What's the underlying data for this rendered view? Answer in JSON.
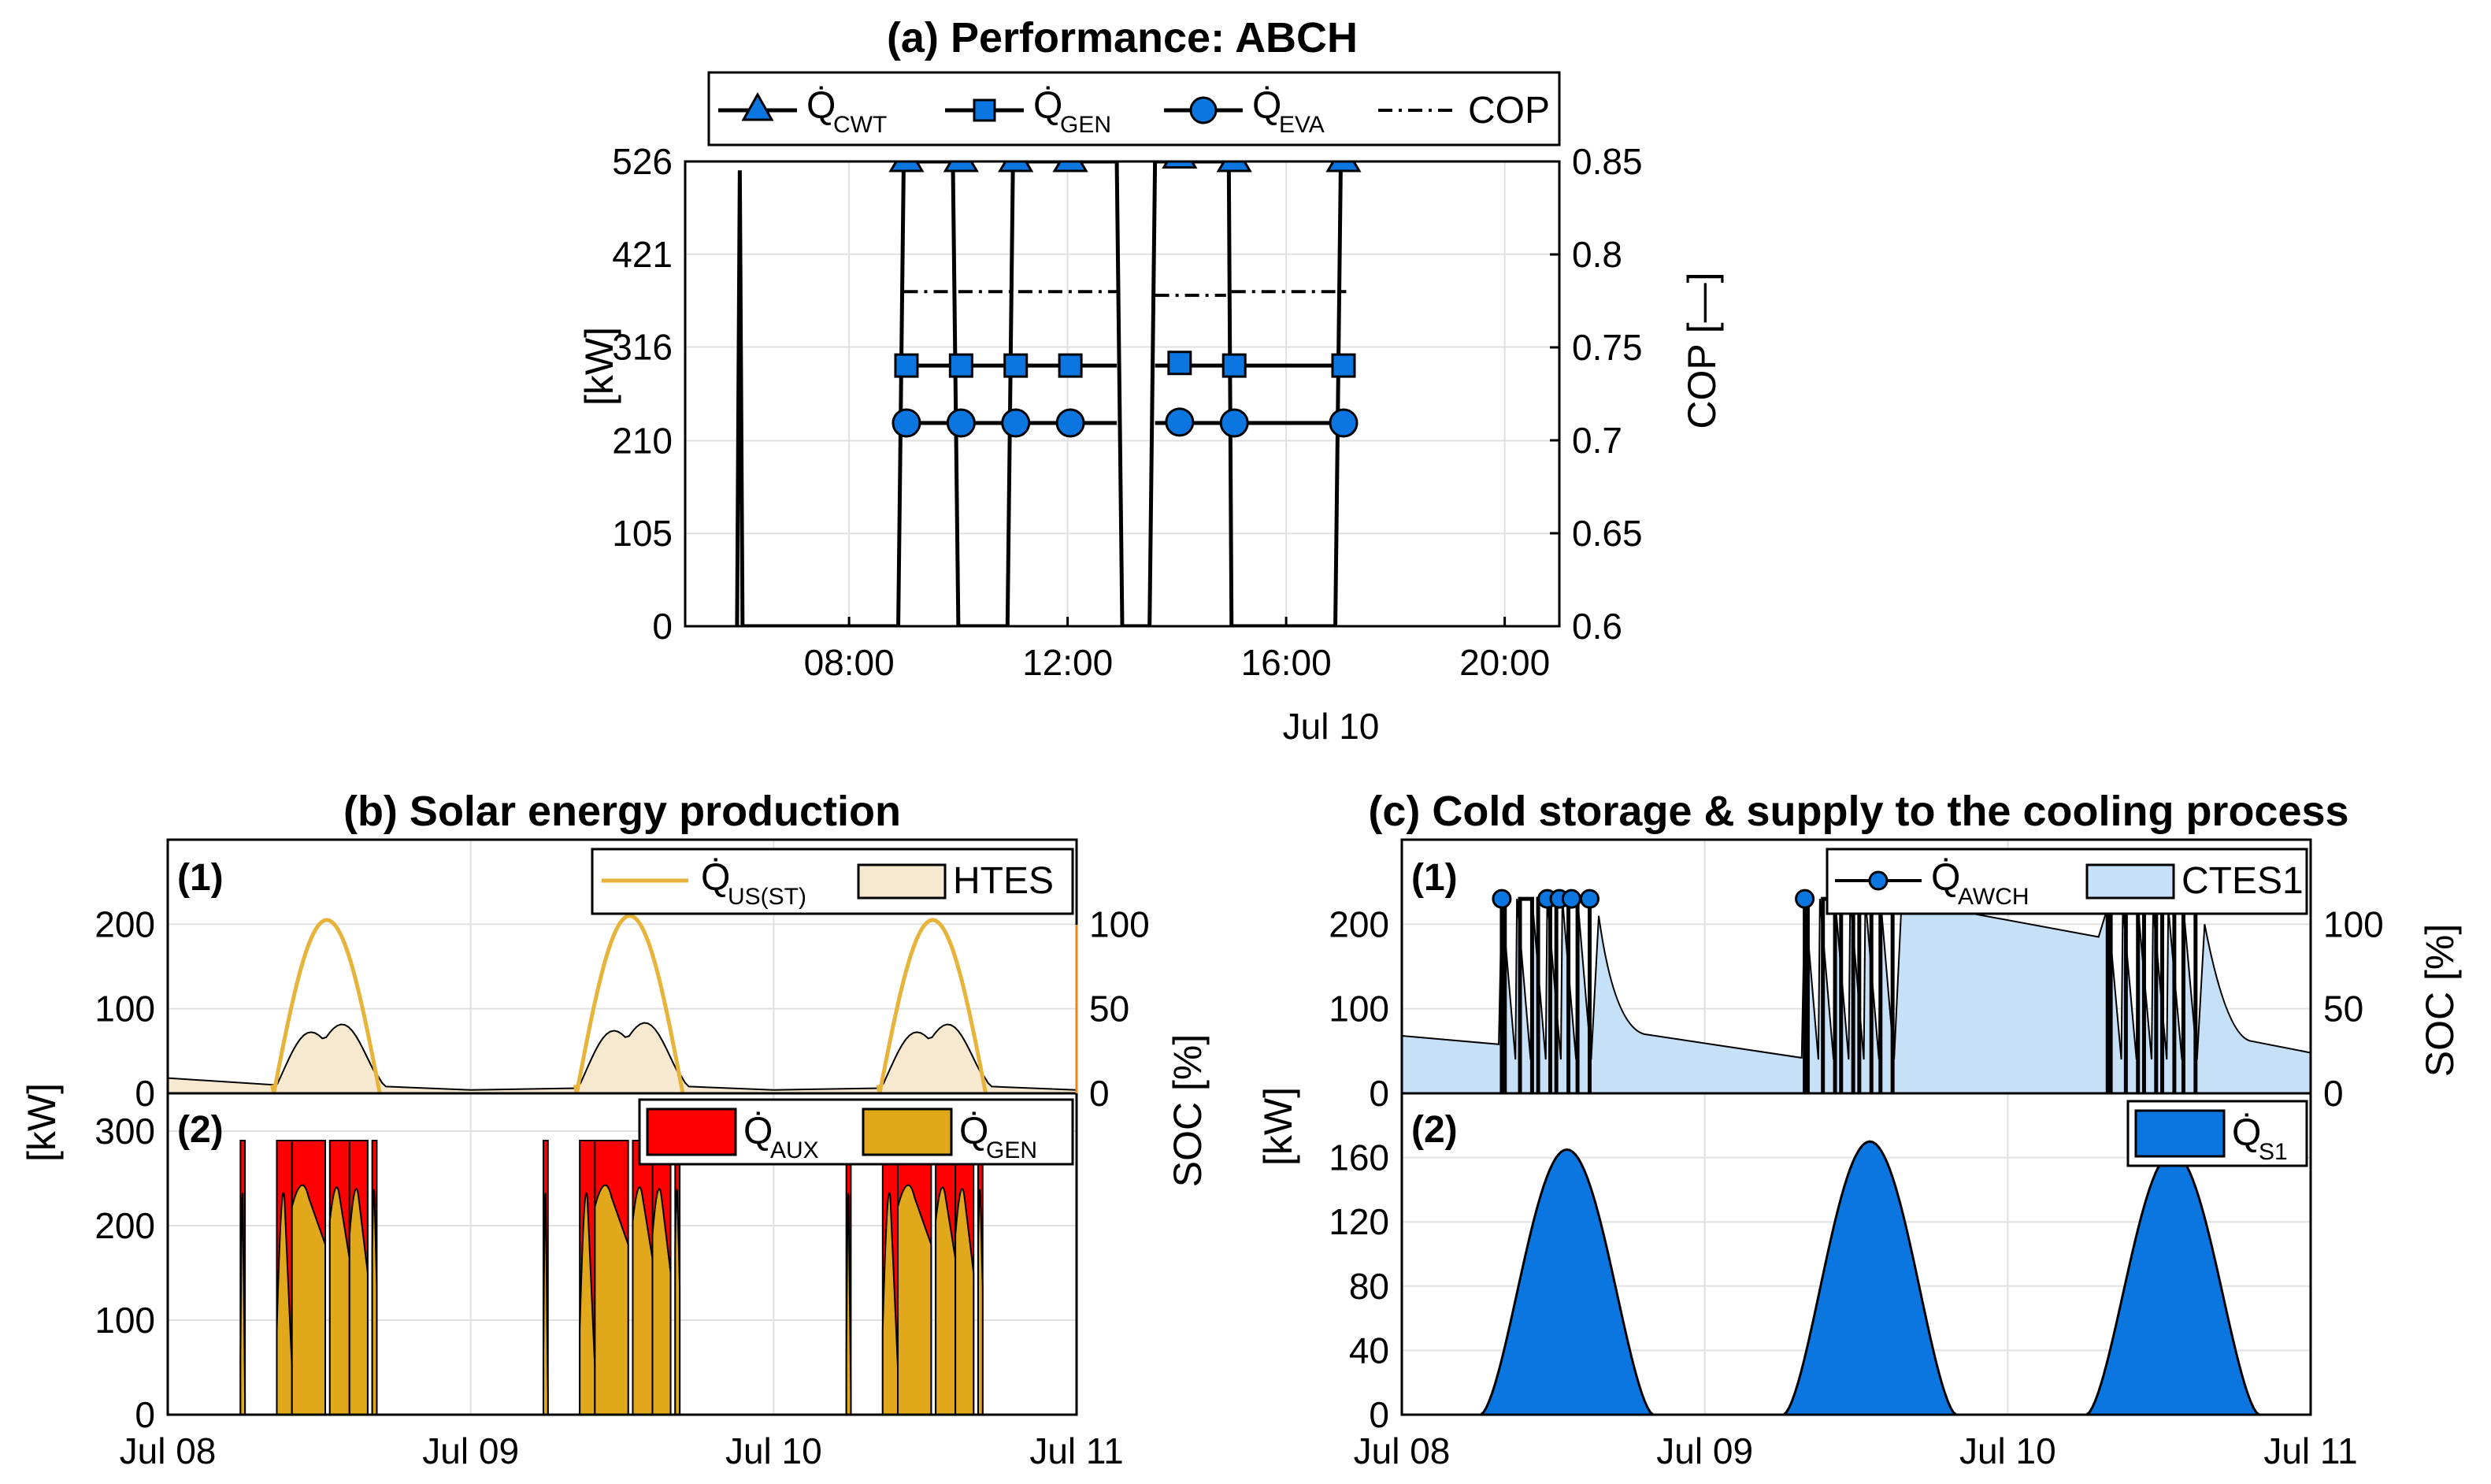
{
  "colors": {
    "blue": "#0b76e0",
    "light_blue": "#c6e0f7",
    "orange": "#e8b33a",
    "beige": "#f7e9cf",
    "red": "#ff0000",
    "gold": "#e2a81c"
  },
  "chart_data": [
    {
      "id": "a",
      "type": "line",
      "title": "(a) Performance: ABCH",
      "ylabel": "[kW]",
      "y2label": "COP [—]",
      "xlabel": "Jul 10",
      "xlim": [
        5.0,
        21.0
      ],
      "ylim": [
        0,
        526
      ],
      "y2lim": [
        0.6,
        0.85
      ],
      "xticks": [
        "08:00",
        "12:00",
        "16:00",
        "20:00"
      ],
      "xtick_values": [
        8,
        12,
        16,
        20
      ],
      "yticks": [
        "0",
        "105",
        "210",
        "316",
        "421",
        "526"
      ],
      "ytick_values": [
        0,
        105,
        210,
        316,
        421,
        526
      ],
      "y2ticks": [
        "0.6",
        "0.65",
        "0.7",
        "0.75",
        "0.8",
        "0.85"
      ],
      "y2tick_values": [
        0.6,
        0.65,
        0.7,
        0.75,
        0.8,
        0.85
      ],
      "legend": [
        {
          "main": "Q̇",
          "sub": "CWT",
          "marker": "triangle"
        },
        {
          "main": "Q̇",
          "sub": "GEN",
          "marker": "square"
        },
        {
          "main": "Q̇",
          "sub": "EVA",
          "marker": "circle"
        },
        {
          "main": "COP",
          "sub": "",
          "marker": "dashdot"
        }
      ],
      "series": [
        {
          "name": "CWT",
          "x": [
            5.95,
            6.0,
            6.05,
            8.9,
            9.0,
            9.9,
            10.0,
            10.9,
            11.0,
            12.9,
            13.0,
            13.5,
            13.6,
            14.95,
            15.0,
            16.9,
            17.0,
            17.1
          ],
          "y": [
            0,
            516,
            0,
            0,
            526,
            526,
            0,
            0,
            526,
            526,
            0,
            0,
            526,
            526,
            0,
            0,
            526,
            526
          ],
          "markers_x": [
            9.05,
            10.05,
            11.05,
            12.05,
            14.05,
            15.05,
            17.05
          ],
          "markers_y": [
            526,
            526,
            526,
            526,
            530,
            526,
            526
          ]
        },
        {
          "name": "GEN",
          "markers_x": [
            9.05,
            10.05,
            11.05,
            12.05,
            14.05,
            15.05,
            17.05
          ],
          "markers_y": [
            295,
            295,
            295,
            295,
            298,
            295,
            295
          ]
        },
        {
          "name": "EVA",
          "markers_x": [
            9.05,
            10.05,
            11.05,
            12.05,
            14.05,
            15.05,
            17.05
          ],
          "markers_y": [
            230,
            230,
            230,
            230,
            231,
            230,
            230
          ]
        },
        {
          "name": "COP",
          "segments": [
            [
              9.0,
              9.95,
              0.78
            ],
            [
              10.0,
              12.9,
              0.78
            ],
            [
              13.6,
              14.9,
              0.778
            ],
            [
              15.0,
              16.9,
              0.78
            ],
            [
              17.0,
              17.1,
              0.78
            ]
          ]
        }
      ]
    },
    {
      "id": "b",
      "type": "area",
      "title": "(b) Solar energy production",
      "ylabel": "[kW]",
      "y2label": "SOC [%]",
      "xticks": [
        "Jul 08",
        "Jul 09",
        "Jul 10",
        "Jul 11"
      ],
      "xlim": [
        0,
        3
      ],
      "panel1": {
        "label": "(1)",
        "ylim": [
          0,
          300
        ],
        "yticks": [
          "0",
          "100",
          "200"
        ],
        "ytick_values": [
          0,
          100,
          200
        ],
        "y2ticks": [
          "0",
          "50",
          "100"
        ],
        "y2tick_values": [
          0,
          50,
          100
        ],
        "legend": [
          {
            "main": "Q̇",
            "sub": "US(ST)"
          },
          {
            "main": "HTES",
            "sub": ""
          }
        ],
        "solar_peak_kW": [
          205,
          210,
          205
        ],
        "htes_peak_kW": [
          88,
          90,
          88
        ]
      },
      "panel2": {
        "label": "(2)",
        "ylim": [
          0,
          340
        ],
        "yticks": [
          "0",
          "100",
          "200",
          "300"
        ],
        "ytick_values": [
          0,
          100,
          200,
          300
        ],
        "legend": [
          {
            "main": "Q̇",
            "sub": "AUX"
          },
          {
            "main": "Q̇",
            "sub": "GEN"
          }
        ],
        "pulse_level_kW": 290
      }
    },
    {
      "id": "c",
      "type": "area",
      "title": "(c) Cold storage & supply to the cooling process",
      "ylabel": "[kW]",
      "y2label": "SOC [%]",
      "xticks": [
        "Jul 08",
        "Jul 09",
        "Jul 10",
        "Jul 11"
      ],
      "xlim": [
        0,
        3
      ],
      "panel1": {
        "label": "(1)",
        "ylim": [
          0,
          300
        ],
        "yticks": [
          "0",
          "100",
          "200"
        ],
        "ytick_values": [
          0,
          100,
          200
        ],
        "y2ticks": [
          "0",
          "50",
          "100"
        ],
        "y2tick_values": [
          0,
          50,
          100
        ],
        "legend": [
          {
            "main": "Q̇",
            "sub": "AWCH"
          },
          {
            "main": "CTES1",
            "sub": ""
          }
        ],
        "awch_level_kW": 230
      },
      "panel2": {
        "label": "(2)",
        "ylim": [
          0,
          200
        ],
        "yticks": [
          "0",
          "40",
          "80",
          "120",
          "160"
        ],
        "ytick_values": [
          0,
          40,
          80,
          120,
          160
        ],
        "legend": [
          {
            "main": "Q̇",
            "sub": "S1"
          }
        ],
        "peaks_kW": [
          165,
          170,
          163
        ]
      }
    }
  ]
}
